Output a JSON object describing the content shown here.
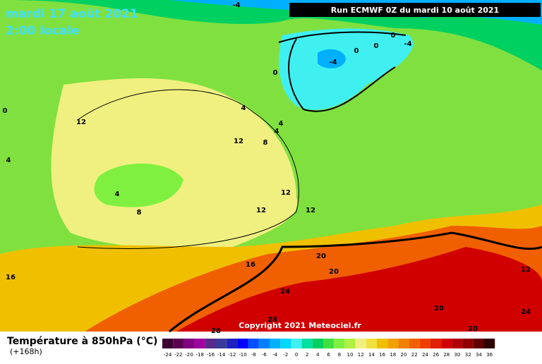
{
  "header": {
    "date": "mardi 17 août 2021",
    "time": "2:00 locale",
    "run": "Run ECMWF 0Z du mardi 10 août 2021",
    "copyright": "Copyright 2021 Meteociel.fr"
  },
  "map": {
    "contour_labels": [
      -4,
      0,
      0,
      0,
      -4,
      -4,
      0,
      0,
      12,
      4,
      4,
      4,
      12,
      8,
      4,
      12,
      4,
      8,
      12,
      12,
      20,
      20,
      16,
      12,
      16,
      24,
      20,
      24,
      28,
      20,
      28
    ]
  },
  "legend": {
    "title": "Température à 850hPa (°C)",
    "subtitle": "(+168h)",
    "scale": [
      -24,
      -22,
      -20,
      -18,
      -16,
      -14,
      -12,
      -10,
      -8,
      -6,
      -4,
      -2,
      0,
      2,
      4,
      6,
      8,
      10,
      12,
      14,
      16,
      18,
      20,
      22,
      24,
      26,
      28,
      30,
      32,
      34,
      36
    ],
    "colors": [
      "#3b0030",
      "#5a0050",
      "#800080",
      "#a000a0",
      "#5a2a8a",
      "#3a3a9a",
      "#2020c0",
      "#0000ff",
      "#0050ff",
      "#0080ff",
      "#00b0ff",
      "#00d8ff",
      "#40f0f0",
      "#00e0a0",
      "#00d060",
      "#40e040",
      "#80f040",
      "#b0f040",
      "#f0f080",
      "#f0e040",
      "#f0c000",
      "#f0a000",
      "#f08000",
      "#f06000",
      "#f04000",
      "#e02000",
      "#d00000",
      "#b00000",
      "#900000",
      "#600000",
      "#300000"
    ]
  }
}
